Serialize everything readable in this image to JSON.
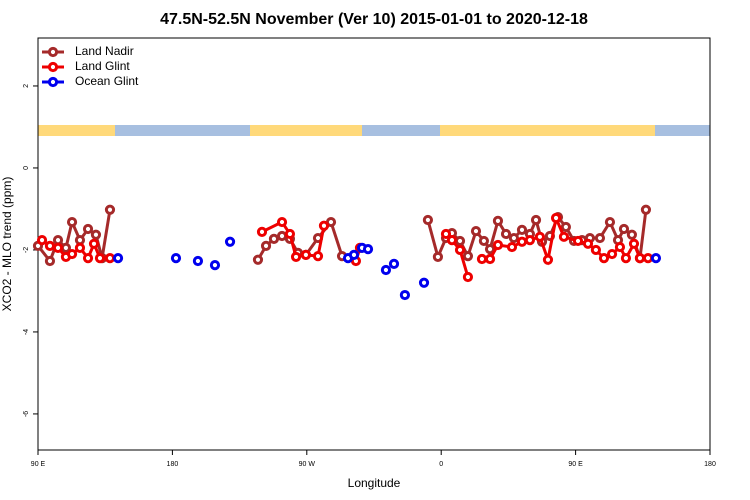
{
  "chart_data": {
    "type": "line",
    "title": "47.5N-52.5N November (Ver 10)   2015-01-01 to 2020-12-18",
    "xlabel": "Longitude",
    "ylabel": "XCO2 - MLO trend (ppm)",
    "xlim": [
      90,
      540
    ],
    "ylim": [
      -6.88,
      3.17
    ],
    "xticks": [
      {
        "value": 90,
        "label": "90 E"
      },
      180,
      {
        "value": 270,
        "label": "90 W"
      },
      {
        "value": 360,
        "label": "0"
      },
      {
        "value": 450,
        "label": "90 E"
      },
      {
        "value": 540,
        "label": "180"
      }
    ],
    "yticks": [
      -6,
      -4,
      -2,
      0,
      2
    ],
    "legend": "top-left",
    "series": [
      {
        "name": "Land Nadir",
        "color": "#a52a2a",
        "mode": "lines+markers",
        "x": [
          90,
          98.0,
          103.4,
          108.7,
          112.8,
          118.1,
          123.5,
          128.8,
          132.9,
          138.2,
          null,
          237.3,
          242.7,
          248.0,
          253.4,
          258.7,
          264.1,
          269.4,
          277.5,
          286.2,
          293.6,
          null,
          351.1,
          357.8,
          363.2,
          367.2,
          372.6,
          377.9,
          383.3,
          388.6,
          392.7,
          398.0,
          403.4,
          408.7,
          414.1,
          419.4,
          423.5,
          427.5,
          432.8,
          438.2,
          443.5,
          448.9,
          454.3,
          459.6,
          466.3,
          473.0,
          478.4,
          482.4,
          487.7,
          493.1,
          497.1
        ],
        "values": [
          -1.9,
          -2.27,
          -1.76,
          -1.95,
          -1.32,
          -1.76,
          -1.49,
          -1.63,
          -2.2,
          -1.02,
          null,
          -2.24,
          -1.9,
          -1.73,
          -1.66,
          -1.73,
          -2.07,
          -2.12,
          -1.71,
          -1.32,
          -2.15,
          null,
          -1.27,
          -2.17,
          -1.71,
          -1.59,
          -1.78,
          -2.15,
          -1.54,
          -1.78,
          -1.98,
          -1.29,
          -1.61,
          -1.71,
          -1.51,
          -1.61,
          -1.27,
          -1.8,
          -1.66,
          -1.2,
          -1.44,
          -1.78,
          -1.76,
          -1.71,
          -1.71,
          -1.32,
          -1.76,
          -1.49,
          -1.63,
          -2.2,
          -1.02
        ]
      },
      {
        "name": "Land Glint",
        "color": "#ee0000",
        "mode": "lines+markers",
        "x": [
          92.7,
          98.0,
          103.4,
          108.7,
          112.8,
          118.1,
          123.5,
          127.5,
          131.5,
          138.2,
          null,
          240.0,
          253.4,
          258.7,
          262.8,
          269.4,
          277.5,
          281.5,
          null,
          302.9,
          305.6,
          null,
          363.2,
          367.2,
          372.6,
          377.9,
          null,
          387.3,
          392.7,
          398.0,
          407.4,
          414.1,
          419.4,
          426.1,
          431.5,
          436.9,
          442.2,
          451.6,
          458.3,
          463.6,
          469.0,
          474.4,
          479.7,
          483.7,
          489.1,
          493.1,
          498.5
        ],
        "values": [
          -1.76,
          -1.9,
          -1.95,
          -2.17,
          -2.1,
          -1.95,
          -2.2,
          -1.85,
          -2.2,
          -2.2,
          null,
          -1.56,
          -1.32,
          -1.61,
          -2.17,
          -2.12,
          -2.15,
          -1.41,
          null,
          -2.27,
          -1.95,
          null,
          -1.61,
          -1.76,
          -2.0,
          -2.66,
          null,
          -2.22,
          -2.22,
          -1.88,
          -1.93,
          -1.8,
          -1.76,
          -1.68,
          -2.24,
          -1.22,
          -1.68,
          -1.78,
          -1.85,
          -2.0,
          -2.2,
          -2.1,
          -1.93,
          -2.2,
          -1.85,
          -2.2,
          -2.2
        ]
      },
      {
        "name": "Ocean Glint",
        "color": "#0000ee",
        "mode": "markers",
        "x": [
          143.6,
          182.4,
          197.1,
          208.5,
          218.6,
          297.6,
          301.6,
          307.0,
          311.0,
          323.0,
          328.4,
          335.7,
          348.5,
          503.8
        ],
        "values": [
          -2.2,
          -2.2,
          -2.27,
          -2.37,
          -1.8,
          -2.2,
          -2.12,
          -1.95,
          -1.98,
          -2.49,
          -2.34,
          -3.1,
          -2.8,
          -2.2
        ]
      }
    ]
  }
}
